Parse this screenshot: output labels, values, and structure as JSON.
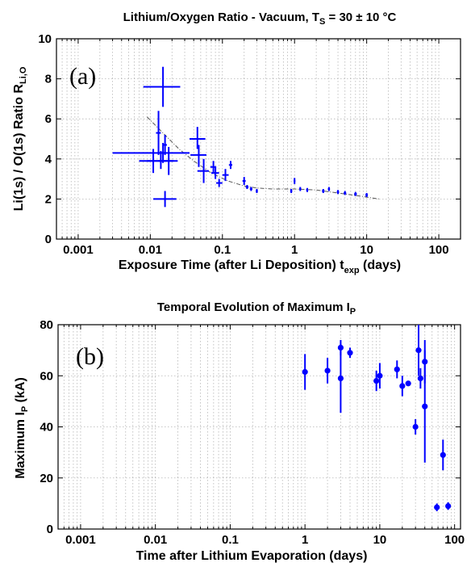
{
  "chart_data": [
    {
      "type": "scatter",
      "panel": "(a)",
      "title_main": "Lithium/Oxygen Ratio - Vacuum, T",
      "title_sub": "S",
      "title_rest": " = 30 ± 10 °C",
      "ylabel": "Li(1s) / O(1s)  Ratio  R",
      "ylabel_sub": "Li,O",
      "xlabel": "Exposure Time (after Li Deposition) t",
      "xlabel_sub": "exp",
      "xlabel_rest": " (days)",
      "xscale": "log",
      "xlim": [
        0.0005,
        200
      ],
      "ylim": [
        0,
        10
      ],
      "x_ticks": [
        0.001,
        0.01,
        0.1,
        1,
        10,
        100
      ],
      "x_tick_labels": [
        "0.001",
        "0.01",
        "0.1",
        "1",
        "10",
        "100"
      ],
      "y_ticks": [
        0,
        2,
        4,
        6,
        8,
        10
      ],
      "y_tick_labels": [
        "0",
        "2",
        "4",
        "6",
        "8",
        "10"
      ],
      "grid": true,
      "marker": "cross",
      "color": "#0000ff",
      "points": [
        {
          "x": 0.015,
          "y": 7.6,
          "xerr": [
            0.008,
            0.026
          ],
          "yerr": [
            6.6,
            8.6
          ]
        },
        {
          "x": 0.013,
          "y": 5.3,
          "xerr": [
            0.012,
            0.014
          ],
          "yerr": [
            4.2,
            6.4
          ]
        },
        {
          "x": 0.015,
          "y": 4.3,
          "xerr": [
            0.003,
            0.035
          ],
          "yerr": [
            3.8,
            4.8
          ]
        },
        {
          "x": 0.011,
          "y": 3.9,
          "xerr": [
            0.007,
            0.017
          ],
          "yerr": [
            3.3,
            4.5
          ]
        },
        {
          "x": 0.014,
          "y": 3.9,
          "xerr": [
            0.009,
            0.021
          ],
          "yerr": [
            3.5,
            4.4
          ]
        },
        {
          "x": 0.018,
          "y": 3.9,
          "xerr": [
            0.013,
            0.024
          ],
          "yerr": [
            3.2,
            4.6
          ]
        },
        {
          "x": 0.016,
          "y": 4.7,
          "xerr": [
            0.015,
            0.017
          ],
          "yerr": [
            4.2,
            5.2
          ]
        },
        {
          "x": 0.016,
          "y": 2.0,
          "xerr": [
            0.011,
            0.023
          ],
          "yerr": [
            1.6,
            2.4
          ]
        },
        {
          "x": 0.045,
          "y": 5.0,
          "xerr": [
            0.035,
            0.058
          ],
          "yerr": [
            4.5,
            5.6
          ]
        },
        {
          "x": 0.047,
          "y": 4.2,
          "xerr": [
            0.036,
            0.06
          ],
          "yerr": [
            3.6,
            4.7
          ]
        },
        {
          "x": 0.055,
          "y": 3.4,
          "xerr": [
            0.045,
            0.065
          ],
          "yerr": [
            2.8,
            4.0
          ]
        },
        {
          "x": 0.075,
          "y": 3.6,
          "xerr": [
            0.068,
            0.082
          ],
          "yerr": [
            3.3,
            3.9
          ]
        },
        {
          "x": 0.08,
          "y": 3.3,
          "xerr": [
            0.07,
            0.09
          ],
          "yerr": [
            3.0,
            3.6
          ]
        },
        {
          "x": 0.09,
          "y": 2.8,
          "xerr": [
            0.082,
            0.1
          ],
          "yerr": [
            2.6,
            3.0
          ]
        },
        {
          "x": 0.11,
          "y": 3.2,
          "xerr": [
            0.1,
            0.122
          ],
          "yerr": [
            2.9,
            3.5
          ]
        },
        {
          "x": 0.13,
          "y": 3.7,
          "xerr": [
            0.123,
            0.137
          ],
          "yerr": [
            3.5,
            3.9
          ]
        },
        {
          "x": 0.2,
          "y": 2.9,
          "xerr": [
            0.19,
            0.21
          ],
          "yerr": [
            2.7,
            3.1
          ]
        },
        {
          "x": 0.22,
          "y": 2.6,
          "xerr": [
            0.21,
            0.23
          ],
          "yerr": [
            2.5,
            2.7
          ]
        },
        {
          "x": 0.25,
          "y": 2.5,
          "xerr": [
            0.24,
            0.26
          ],
          "yerr": [
            2.4,
            2.6
          ]
        },
        {
          "x": 0.3,
          "y": 2.4,
          "xerr": [
            0.29,
            0.31
          ],
          "yerr": [
            2.3,
            2.5
          ]
        },
        {
          "x": 0.9,
          "y": 2.4,
          "xerr": [
            0.87,
            0.93
          ],
          "yerr": [
            2.3,
            2.5
          ]
        },
        {
          "x": 1.0,
          "y": 2.9,
          "xerr": [
            0.98,
            1.02
          ],
          "yerr": [
            2.75,
            3.05
          ]
        },
        {
          "x": 1.2,
          "y": 2.5,
          "xerr": [
            1.16,
            1.24
          ],
          "yerr": [
            2.4,
            2.6
          ]
        },
        {
          "x": 1.5,
          "y": 2.45,
          "xerr": [
            1.45,
            1.55
          ],
          "yerr": [
            2.35,
            2.55
          ]
        },
        {
          "x": 2.5,
          "y": 2.4,
          "xerr": [
            2.4,
            2.6
          ],
          "yerr": [
            2.3,
            2.5
          ]
        },
        {
          "x": 3.0,
          "y": 2.5,
          "xerr": [
            2.9,
            3.1
          ],
          "yerr": [
            2.4,
            2.6
          ]
        },
        {
          "x": 4.0,
          "y": 2.35,
          "xerr": [
            3.85,
            4.15
          ],
          "yerr": [
            2.25,
            2.45
          ]
        },
        {
          "x": 5.0,
          "y": 2.3,
          "xerr": [
            4.8,
            5.2
          ],
          "yerr": [
            2.2,
            2.4
          ]
        },
        {
          "x": 7.0,
          "y": 2.25,
          "xerr": [
            6.7,
            7.3
          ],
          "yerr": [
            2.15,
            2.35
          ]
        },
        {
          "x": 10.0,
          "y": 2.2,
          "xerr": [
            9.6,
            10.4
          ],
          "yerr": [
            2.1,
            2.3
          ]
        }
      ],
      "fit_curve": {
        "x": [
          0.009,
          0.015,
          0.025,
          0.04,
          0.07,
          0.12,
          0.2,
          0.3,
          0.5,
          1,
          2,
          4,
          8,
          15
        ],
        "y": [
          6.1,
          5.3,
          4.5,
          3.9,
          3.3,
          2.9,
          2.65,
          2.55,
          2.5,
          2.5,
          2.45,
          2.3,
          2.15,
          2.0
        ],
        "color": "#555555"
      }
    },
    {
      "type": "scatter",
      "panel": "(b)",
      "title_main": "Temporal Evolution of Maximum I",
      "title_sub": "P",
      "ylabel": "Maximum  I",
      "ylabel_sub": "P",
      "ylabel_rest": " (kA)",
      "xlabel": "Time after Lithium Evaporation (days)",
      "xscale": "log",
      "xlim": [
        0.0005,
        120
      ],
      "ylim": [
        0,
        80
      ],
      "x_ticks": [
        0.001,
        0.01,
        0.1,
        1,
        10,
        100
      ],
      "x_tick_labels": [
        "0.001",
        "0.01",
        "0.1",
        "1",
        "10",
        "100"
      ],
      "y_ticks": [
        0,
        20,
        40,
        60,
        80
      ],
      "y_tick_labels": [
        "0",
        "20",
        "40",
        "60",
        "80"
      ],
      "grid": true,
      "marker": "filled-circle",
      "color": "#0000ff",
      "points": [
        {
          "x": 1.0,
          "y": 61.5,
          "yerr": [
            54.5,
            68.5
          ]
        },
        {
          "x": 2.0,
          "y": 62.0,
          "yerr": [
            57.0,
            67.0
          ]
        },
        {
          "x": 3.0,
          "y": 71.0,
          "yerr": [
            68.0,
            74.0
          ]
        },
        {
          "x": 3.0,
          "y": 59.0,
          "yerr": [
            45.5,
            72.5
          ]
        },
        {
          "x": 4.0,
          "y": 69.0,
          "yerr": [
            67.0,
            71.0
          ]
        },
        {
          "x": 9.0,
          "y": 58.0,
          "yerr": [
            54.0,
            62.0
          ]
        },
        {
          "x": 10.0,
          "y": 60.0,
          "yerr": [
            55.0,
            65.0
          ]
        },
        {
          "x": 17.0,
          "y": 62.5,
          "yerr": [
            59.0,
            66.0
          ]
        },
        {
          "x": 20.0,
          "y": 56.0,
          "yerr": [
            52.0,
            60.0
          ]
        },
        {
          "x": 24.0,
          "y": 57.0,
          "yerr": [
            56.0,
            58.0
          ]
        },
        {
          "x": 30.0,
          "y": 40.0,
          "yerr": [
            37.0,
            43.0
          ]
        },
        {
          "x": 33.0,
          "y": 70.0,
          "yerr": [
            60.0,
            80.0
          ]
        },
        {
          "x": 35.0,
          "y": 59.0,
          "yerr": [
            55.0,
            63.0
          ]
        },
        {
          "x": 40.0,
          "y": 65.5,
          "yerr": [
            57.0,
            74.0
          ]
        },
        {
          "x": 40.0,
          "y": 48.0,
          "yerr": [
            26.0,
            70.0
          ]
        },
        {
          "x": 58.0,
          "y": 8.5,
          "yerr": [
            7.0,
            10.0
          ]
        },
        {
          "x": 70.0,
          "y": 29.0,
          "yerr": [
            23.0,
            35.0
          ]
        },
        {
          "x": 82.0,
          "y": 9.0,
          "yerr": [
            7.5,
            10.5
          ]
        }
      ]
    }
  ]
}
